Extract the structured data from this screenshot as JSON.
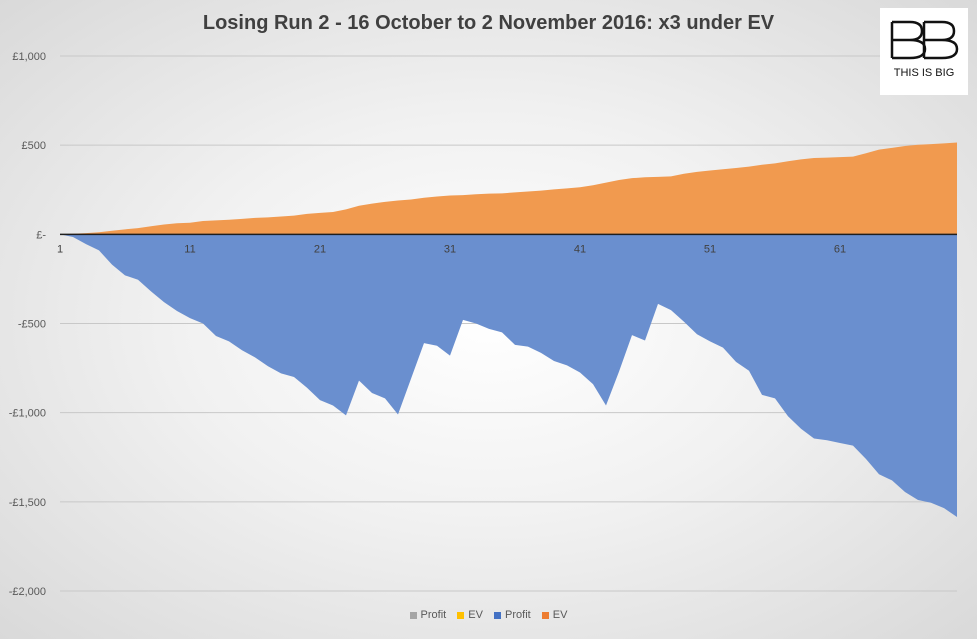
{
  "chart_data": {
    "type": "area",
    "title": "Losing Run 2 - 16 October to 2 November 2016: x3 under EV",
    "xlabel": "",
    "ylabel": "",
    "xlim": [
      1,
      70
    ],
    "ylim": [
      -2000,
      1000
    ],
    "yticks": [
      {
        "value": 1000,
        "label": "£1,000"
      },
      {
        "value": 500,
        "label": "£500"
      },
      {
        "value": 0,
        "label": "£-"
      },
      {
        "value": -500,
        "label": "-£500"
      },
      {
        "value": -1000,
        "label": "-£1,000"
      },
      {
        "value": -1500,
        "label": "-£1,500"
      },
      {
        "value": -2000,
        "label": "-£2,000"
      }
    ],
    "xticks": [
      {
        "value": 1,
        "label": "1"
      },
      {
        "value": 11,
        "label": "11"
      },
      {
        "value": 21,
        "label": "21"
      },
      {
        "value": 31,
        "label": "31"
      },
      {
        "value": 41,
        "label": "41"
      },
      {
        "value": 51,
        "label": "51"
      },
      {
        "value": 61,
        "label": "61"
      }
    ],
    "grid": true,
    "legend_position": "bottom",
    "x": [
      1,
      2,
      3,
      4,
      5,
      6,
      7,
      8,
      9,
      10,
      11,
      12,
      13,
      14,
      15,
      16,
      17,
      18,
      19,
      20,
      21,
      22,
      23,
      24,
      25,
      26,
      27,
      28,
      29,
      30,
      31,
      32,
      33,
      34,
      35,
      36,
      37,
      38,
      39,
      40,
      41,
      42,
      43,
      44,
      45,
      46,
      47,
      48,
      49,
      50,
      51,
      52,
      53,
      54,
      55,
      56,
      57,
      58,
      59,
      60,
      61,
      62,
      63,
      64,
      65,
      66,
      67,
      68,
      69,
      70
    ],
    "series": [
      {
        "name": "Profit",
        "color": "#4472c4",
        "fill": "#6a8fcf",
        "values": [
          0,
          -15,
          -55,
          -90,
          -170,
          -230,
          -255,
          -320,
          -380,
          -430,
          -470,
          -500,
          -570,
          -600,
          -650,
          -690,
          -740,
          -780,
          -800,
          -860,
          -930,
          -960,
          -1015,
          -820,
          -890,
          -920,
          -1010,
          -810,
          -610,
          -625,
          -680,
          -480,
          -500,
          -530,
          -550,
          -620,
          -630,
          -665,
          -710,
          -735,
          -775,
          -840,
          -960,
          -770,
          -565,
          -595,
          -390,
          -425,
          -490,
          -560,
          -600,
          -635,
          -715,
          -765,
          -900,
          -920,
          -1020,
          -1090,
          -1145,
          -1155,
          -1170,
          -1185,
          -1260,
          -1345,
          -1380,
          -1445,
          -1490,
          -1505,
          -1535,
          -1585
        ]
      },
      {
        "name": "EV",
        "color": "#ed7d31",
        "fill": "#f19a4f",
        "values": [
          0,
          3,
          7,
          12,
          20,
          28,
          35,
          45,
          55,
          62,
          65,
          75,
          78,
          82,
          87,
          92,
          95,
          100,
          105,
          115,
          120,
          125,
          140,
          160,
          172,
          182,
          190,
          195,
          205,
          212,
          218,
          220,
          225,
          228,
          230,
          235,
          240,
          245,
          252,
          258,
          264,
          275,
          290,
          305,
          315,
          320,
          322,
          325,
          340,
          350,
          358,
          365,
          372,
          380,
          390,
          398,
          410,
          420,
          428,
          430,
          433,
          436,
          455,
          475,
          485,
          495,
          502,
          506,
          510,
          515
        ]
      }
    ],
    "legend": [
      {
        "name": "Profit",
        "color": "#a5a5a5"
      },
      {
        "name": "EV",
        "color": "#ffc000"
      },
      {
        "name": "Profit",
        "color": "#4472c4"
      },
      {
        "name": "EV",
        "color": "#ed7d31"
      }
    ]
  },
  "logo": {
    "mark": "BB",
    "text": "THIS IS BIG"
  }
}
